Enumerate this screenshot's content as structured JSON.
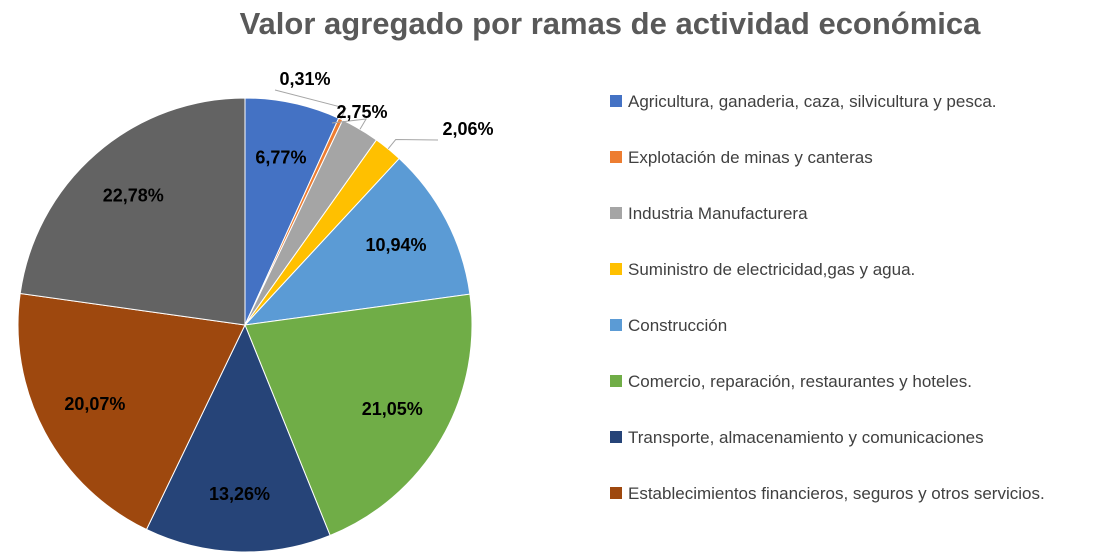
{
  "chart_data": {
    "type": "pie",
    "title": "Valor agregado por ramas de actividad económica",
    "categories": [
      "Agricultura, ganaderia, caza, silvicultura y pesca.",
      "Explotación de minas y canteras",
      "Industria Manufacturera",
      "Suministro de electricidad,gas y agua.",
      "Construcción",
      "Comercio, reparación, restaurantes y hoteles.",
      "Transporte, almacenamiento y comunicaciones",
      "Establecimientos financieros, seguros y otros servicios.",
      null
    ],
    "values": [
      6.77,
      0.31,
      2.75,
      2.06,
      10.94,
      21.05,
      13.26,
      20.07,
      22.78
    ],
    "value_labels": [
      "6,77%",
      "0,31%",
      "2,75%",
      "2,06%",
      "10,94%",
      "21,05%",
      "13,26%",
      "20,07%",
      "22,78%"
    ],
    "colors": [
      "#4472c4",
      "#ed7d31",
      "#a5a5a5",
      "#ffc000",
      "#5b9bd5",
      "#70ad47",
      "#264478",
      "#9e480e",
      "#636363"
    ],
    "legend": "right"
  }
}
